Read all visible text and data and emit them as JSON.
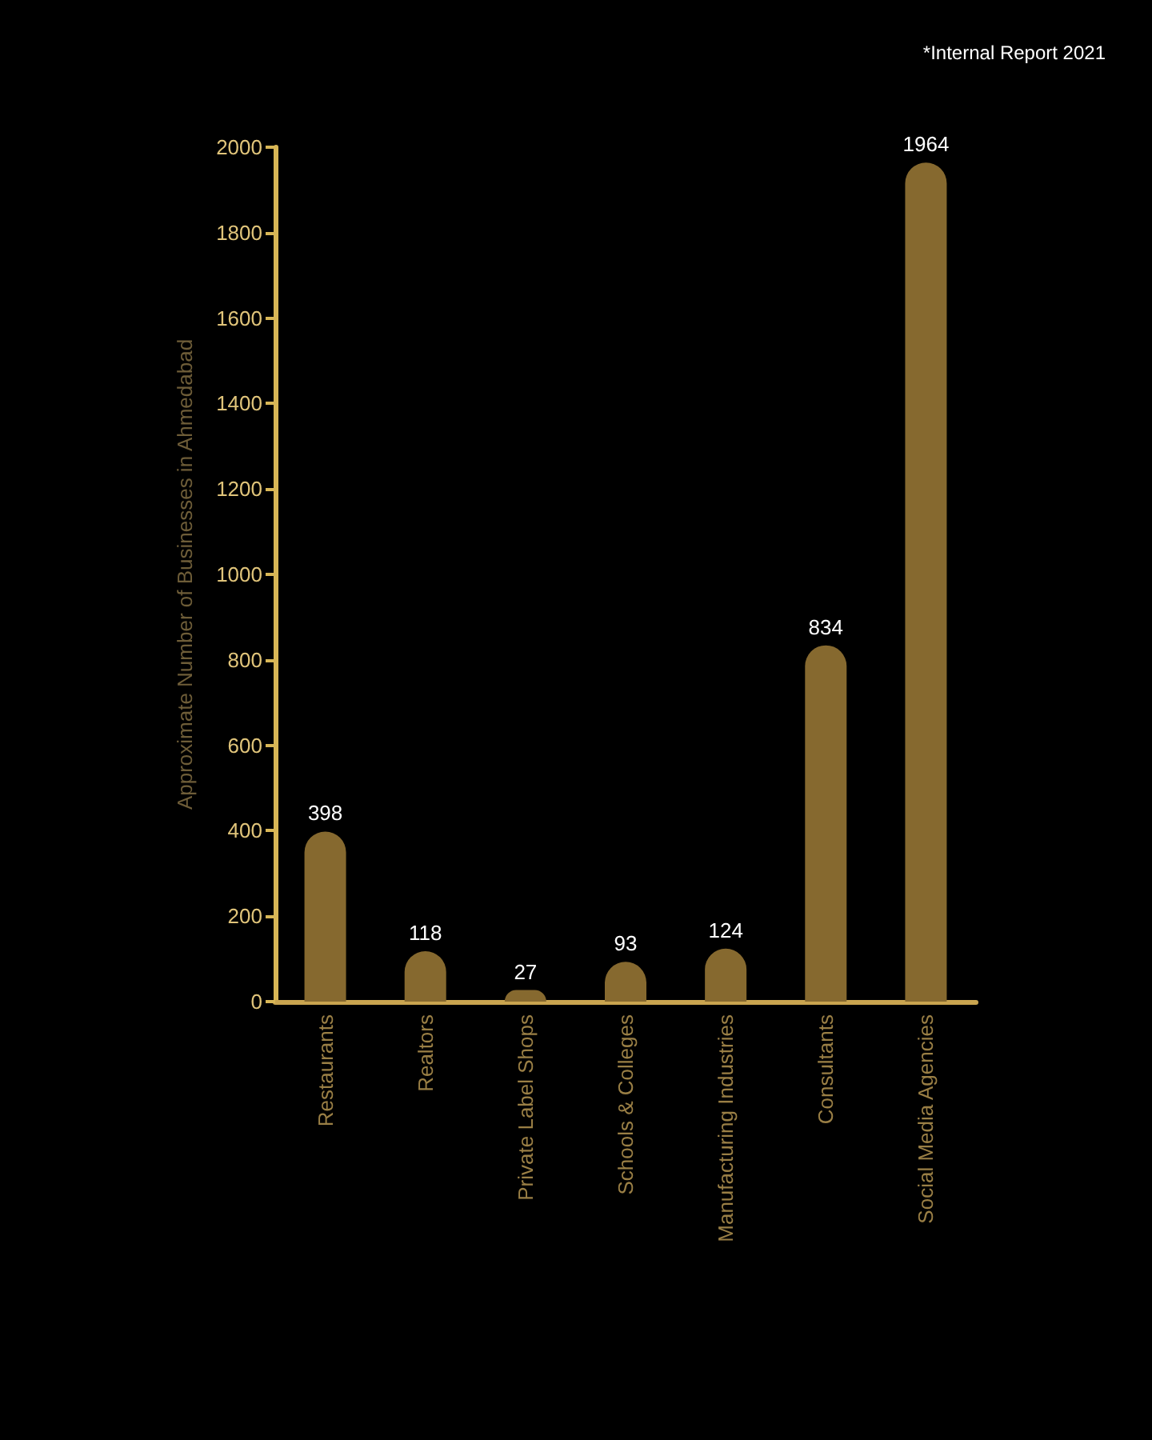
{
  "chart_data": {
    "type": "bar",
    "ylabel": "Approximate Number of Businesses in Ahmedabad",
    "categories": [
      "Restaurants",
      "Realtors",
      "Private Label Shops",
      "Schools & Colleges",
      "Manufacturing Industries",
      "Consultants",
      "Social Media Agencies"
    ],
    "values": [
      398,
      118,
      27,
      93,
      124,
      834,
      1964
    ],
    "color": "#86692f",
    "ylim": [
      0,
      2000
    ],
    "yticks": [
      0,
      200,
      400,
      600,
      800,
      1000,
      1200,
      1400,
      1600,
      1800,
      2000
    ],
    "grid": false,
    "data_labels": true,
    "annotations": [
      "*Internal Report 2021"
    ]
  }
}
